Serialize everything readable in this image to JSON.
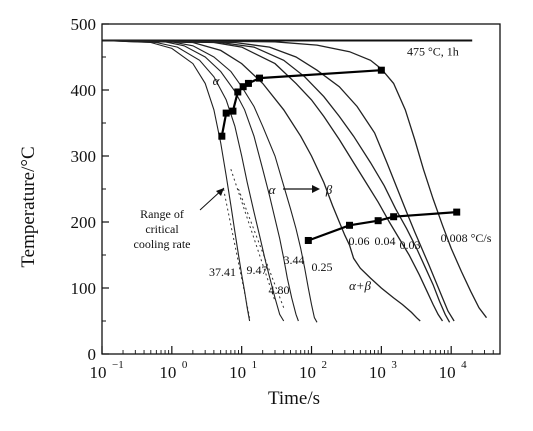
{
  "chart_data": {
    "type": "line",
    "title": "",
    "xlabel": "Time/s",
    "ylabel": "Temperature/°C",
    "x_scale": "log",
    "xlim": [
      0.1,
      50000
    ],
    "ylim": [
      0,
      500
    ],
    "x_ticks": [
      0.1,
      1,
      10,
      100,
      1000,
      10000
    ],
    "x_tick_labels": [
      "10",
      "10",
      "10",
      "10",
      "10",
      "10"
    ],
    "x_tick_exponents": [
      "−1",
      "0",
      "1",
      "2",
      "3",
      "4"
    ],
    "y_ticks": [
      0,
      100,
      200,
      300,
      400,
      500
    ],
    "y_tick_labels": [
      "0",
      "100",
      "200",
      "300",
      "400",
      "500"
    ],
    "grid": false,
    "isothermal_line": {
      "label": "475 °C, 1h",
      "y": 475,
      "x_start": 0.1,
      "x_end": 20000
    },
    "series": [
      {
        "label": "37.41",
        "points": [
          [
            0.1,
            475
          ],
          [
            0.5,
            472
          ],
          [
            1,
            463
          ],
          [
            2,
            440
          ],
          [
            3,
            410
          ],
          [
            4,
            370
          ],
          [
            5,
            320
          ],
          [
            6,
            270
          ],
          [
            7,
            225
          ],
          [
            8,
            185
          ],
          [
            9,
            150
          ],
          [
            10,
            120
          ],
          [
            11,
            95
          ],
          [
            12,
            70
          ],
          [
            13,
            50
          ]
        ]
      },
      {
        "label": "9.47",
        "points": [
          [
            0.1,
            475
          ],
          [
            0.6,
            472
          ],
          [
            1.2,
            465
          ],
          [
            2.5,
            445
          ],
          [
            4,
            420
          ],
          [
            6,
            385
          ],
          [
            8,
            345
          ],
          [
            10,
            300
          ],
          [
            12,
            260
          ],
          [
            15,
            215
          ],
          [
            18,
            180
          ],
          [
            22,
            140
          ],
          [
            26,
            110
          ],
          [
            30,
            85
          ],
          [
            35,
            60
          ],
          [
            40,
            50
          ]
        ]
      },
      {
        "label": "4.80",
        "points": [
          [
            0.1,
            475
          ],
          [
            0.8,
            473
          ],
          [
            1.5,
            467
          ],
          [
            3,
            450
          ],
          [
            5,
            428
          ],
          [
            8,
            398
          ],
          [
            11,
            370
          ],
          [
            15,
            330
          ],
          [
            20,
            280
          ],
          [
            25,
            240
          ],
          [
            30,
            205
          ],
          [
            35,
            175
          ],
          [
            40,
            145
          ],
          [
            45,
            115
          ],
          [
            52,
            85
          ],
          [
            60,
            60
          ],
          [
            65,
            50
          ]
        ]
      },
      {
        "label": "3.44",
        "points": [
          [
            0.1,
            475
          ],
          [
            1,
            473
          ],
          [
            2,
            467
          ],
          [
            4,
            450
          ],
          [
            7,
            428
          ],
          [
            10,
            405
          ],
          [
            15,
            375
          ],
          [
            20,
            345
          ],
          [
            30,
            300
          ],
          [
            40,
            255
          ],
          [
            50,
            220
          ],
          [
            60,
            190
          ],
          [
            70,
            160
          ],
          [
            80,
            130
          ],
          [
            90,
            100
          ],
          [
            100,
            75
          ],
          [
            110,
            55
          ],
          [
            120,
            48
          ]
        ]
      },
      {
        "label": "0.25",
        "points": [
          [
            0.1,
            475
          ],
          [
            2,
            472
          ],
          [
            5,
            460
          ],
          [
            10,
            440
          ],
          [
            20,
            410
          ],
          [
            40,
            370
          ],
          [
            70,
            330
          ],
          [
            100,
            300
          ],
          [
            150,
            260
          ],
          [
            200,
            225
          ],
          [
            250,
            200
          ],
          [
            300,
            180
          ],
          [
            350,
            165
          ],
          [
            400,
            145
          ],
          [
            500,
            130
          ],
          [
            700,
            115
          ],
          [
            1000,
            100
          ],
          [
            1500,
            85
          ],
          [
            2000,
            75
          ],
          [
            2700,
            63
          ],
          [
            3200,
            55
          ],
          [
            3600,
            50
          ]
        ]
      },
      {
        "label": "0.06",
        "points": [
          [
            0.1,
            475
          ],
          [
            4,
            472
          ],
          [
            10,
            465
          ],
          [
            30,
            440
          ],
          [
            60,
            410
          ],
          [
            100,
            385
          ],
          [
            150,
            360
          ],
          [
            250,
            325
          ],
          [
            400,
            290
          ],
          [
            600,
            260
          ],
          [
            900,
            230
          ],
          [
            1300,
            200
          ],
          [
            1800,
            175
          ],
          [
            2500,
            150
          ],
          [
            3500,
            120
          ],
          [
            4500,
            95
          ],
          [
            5500,
            75
          ],
          [
            6500,
            60
          ],
          [
            7500,
            50
          ]
        ]
      },
      {
        "label": "0.04",
        "points": [
          [
            0.1,
            475
          ],
          [
            5,
            472
          ],
          [
            15,
            465
          ],
          [
            40,
            445
          ],
          [
            80,
            420
          ],
          [
            150,
            390
          ],
          [
            250,
            360
          ],
          [
            400,
            330
          ],
          [
            700,
            290
          ],
          [
            1100,
            255
          ],
          [
            1600,
            220
          ],
          [
            2300,
            190
          ],
          [
            3200,
            160
          ],
          [
            4300,
            130
          ],
          [
            5500,
            105
          ],
          [
            6800,
            80
          ],
          [
            8200,
            60
          ],
          [
            9500,
            48
          ]
        ]
      },
      {
        "label": "0.03",
        "points": [
          [
            0.1,
            475
          ],
          [
            8,
            472
          ],
          [
            25,
            465
          ],
          [
            60,
            450
          ],
          [
            120,
            430
          ],
          [
            250,
            405
          ],
          [
            450,
            375
          ],
          [
            800,
            335
          ],
          [
            1200,
            290
          ],
          [
            1700,
            250
          ],
          [
            2300,
            215
          ],
          [
            3000,
            185
          ],
          [
            3800,
            160
          ],
          [
            4800,
            135
          ],
          [
            6000,
            110
          ],
          [
            7500,
            85
          ],
          [
            9000,
            65
          ],
          [
            11000,
            50
          ]
        ]
      },
      {
        "label": "0.008 °C/s",
        "points": [
          [
            0.1,
            475
          ],
          [
            30,
            473
          ],
          [
            120,
            468
          ],
          [
            350,
            458
          ],
          [
            700,
            445
          ],
          [
            1000,
            432
          ],
          [
            1500,
            410
          ],
          [
            2200,
            370
          ],
          [
            3000,
            325
          ],
          [
            4000,
            280
          ],
          [
            5500,
            235
          ],
          [
            7500,
            195
          ],
          [
            10000,
            160
          ],
          [
            14000,
            125
          ],
          [
            19000,
            95
          ],
          [
            25000,
            70
          ],
          [
            32000,
            55
          ]
        ]
      }
    ],
    "transformation_curves": [
      {
        "label": "α",
        "points": [
          [
            5.2,
            330
          ],
          [
            6,
            365
          ],
          [
            7.5,
            368
          ],
          [
            8.8,
            397
          ],
          [
            10.5,
            405
          ],
          [
            12.5,
            410
          ],
          [
            18,
            418
          ],
          [
            1000,
            430
          ]
        ]
      },
      {
        "label": "α → β",
        "points": [
          [
            90,
            172
          ],
          [
            350,
            195
          ],
          [
            900,
            202
          ],
          [
            1500,
            208
          ],
          [
            12000,
            215
          ]
        ]
      }
    ],
    "region_labels": [
      {
        "text": "α",
        "x": 11,
        "y": 438
      },
      {
        "text": "α",
        "x": 70,
        "y": 245
      },
      {
        "text": "β",
        "x": 270,
        "y": 245
      },
      {
        "text": "α+β",
        "x": 400,
        "y": 100
      }
    ],
    "annotations": [
      {
        "text": "Range of",
        "line": 1
      },
      {
        "text": "critical",
        "line": 2
      },
      {
        "text": "cooling rate",
        "line": 3
      }
    ]
  }
}
